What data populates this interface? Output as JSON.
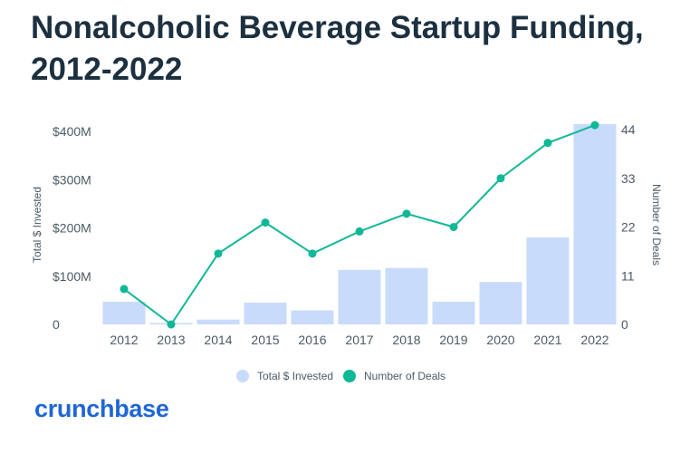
{
  "title_line1": "Nonalcoholic Beverage Startup Funding,",
  "title_line2": "2012-2022",
  "brand": "crunchbase",
  "colors": {
    "bar": "#c9dbfb",
    "line": "#0fb896",
    "title": "#1c3040",
    "brand": "#1f66d6",
    "axis_text": "#4a5a66"
  },
  "chart_data": {
    "type": "bar+line",
    "categories": [
      "2012",
      "2013",
      "2014",
      "2015",
      "2016",
      "2017",
      "2018",
      "2019",
      "2020",
      "2021",
      "2022"
    ],
    "series": [
      {
        "name": "Total $ Invested",
        "type": "bar",
        "axis": "left",
        "values": [
          47,
          3,
          10,
          45,
          29,
          113,
          117,
          47,
          88,
          180,
          415
        ]
      },
      {
        "name": "Number of Deals",
        "type": "line",
        "axis": "right",
        "values": [
          8,
          0,
          16,
          23,
          16,
          21,
          25,
          22,
          33,
          41,
          45
        ]
      }
    ],
    "left_axis": {
      "label": "Total $ Invested",
      "ticks": [
        "0",
        "$100M",
        "$200M",
        "$300M",
        "$400M"
      ],
      "tick_values": [
        0,
        100,
        200,
        300,
        400
      ],
      "unit": "$M"
    },
    "right_axis": {
      "label": "Number of Deals",
      "ticks": [
        "0",
        "11",
        "22",
        "33",
        "44"
      ],
      "tick_values": [
        0,
        11,
        22,
        33,
        44
      ]
    },
    "legend": {
      "position": "bottom-center",
      "items": [
        "Total $ Invested",
        "Number of Deals"
      ]
    },
    "grid": false
  }
}
